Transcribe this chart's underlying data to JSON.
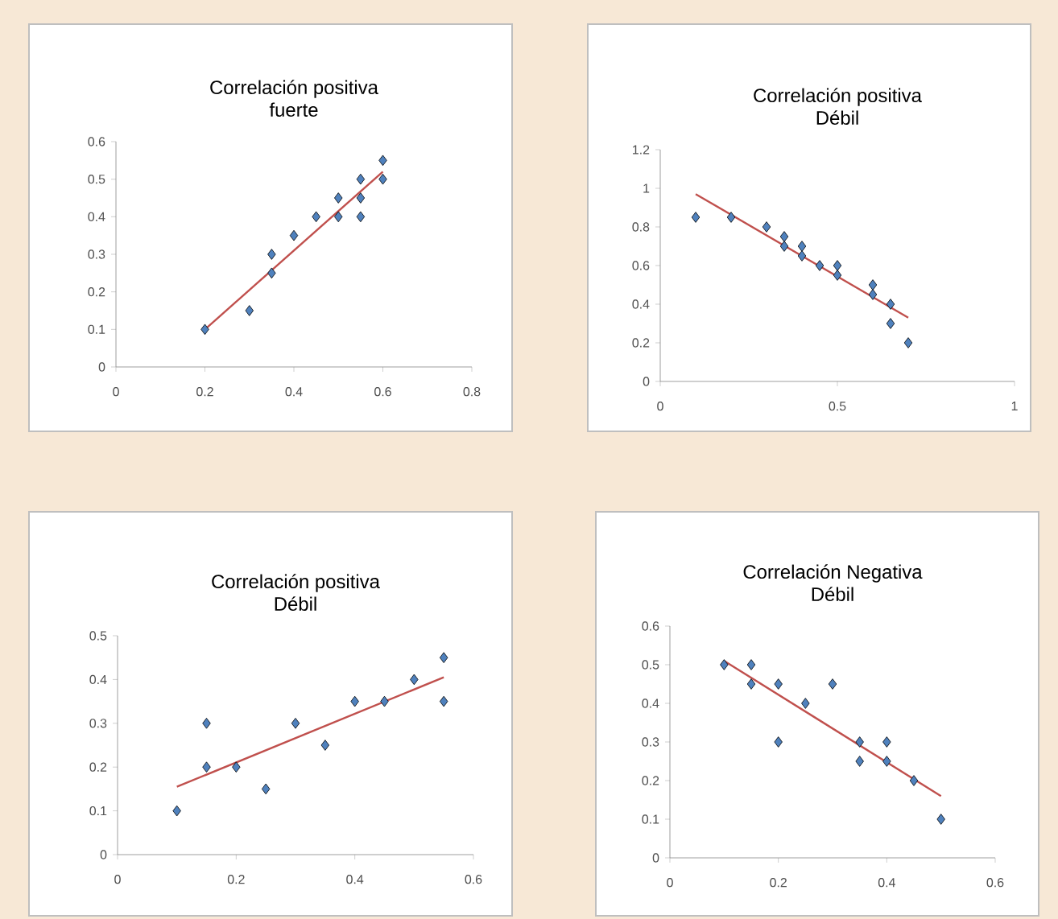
{
  "chart_data": [
    {
      "type": "scatter",
      "title": "Correlación positiva",
      "subtitle": "fuerte",
      "xlim": [
        0,
        0.8
      ],
      "xticks": [
        0,
        0.2,
        0.4,
        0.6,
        0.8
      ],
      "ylim": [
        0,
        0.6
      ],
      "yticks": [
        0,
        0.1,
        0.2,
        0.3,
        0.4,
        0.5,
        0.6
      ],
      "series": [
        {
          "marker": "diamond",
          "color": "#4f81bd",
          "x": [
            0.2,
            0.3,
            0.35,
            0.35,
            0.4,
            0.45,
            0.5,
            0.5,
            0.55,
            0.55,
            0.55,
            0.6,
            0.6
          ],
          "values": [
            0.1,
            0.15,
            0.25,
            0.3,
            0.35,
            0.4,
            0.4,
            0.45,
            0.4,
            0.45,
            0.5,
            0.5,
            0.55
          ]
        },
        {
          "type": "line",
          "marker": "none",
          "color": "#c0504d",
          "x": [
            0.2,
            0.6
          ],
          "values": [
            0.1,
            0.52
          ]
        }
      ]
    },
    {
      "type": "scatter",
      "title": "Correlación positiva",
      "subtitle": "Débil",
      "xlim": [
        0,
        1
      ],
      "xticks": [
        0,
        0.5,
        1
      ],
      "ylim": [
        0,
        1.2
      ],
      "yticks": [
        0,
        0.2,
        0.4,
        0.6,
        0.8,
        1,
        1.2
      ],
      "series": [
        {
          "marker": "diamond",
          "color": "#4f81bd",
          "x": [
            0.1,
            0.2,
            0.3,
            0.35,
            0.35,
            0.4,
            0.4,
            0.45,
            0.5,
            0.5,
            0.6,
            0.6,
            0.65,
            0.65,
            0.7
          ],
          "values": [
            0.85,
            0.85,
            0.8,
            0.75,
            0.7,
            0.7,
            0.65,
            0.6,
            0.6,
            0.55,
            0.5,
            0.45,
            0.4,
            0.3,
            0.2
          ]
        },
        {
          "type": "line",
          "marker": "none",
          "color": "#c0504d",
          "x": [
            0.1,
            0.7
          ],
          "values": [
            0.97,
            0.33
          ]
        }
      ]
    },
    {
      "type": "scatter",
      "title": "Correlación positiva",
      "subtitle": "Débil",
      "xlim": [
        0,
        0.6
      ],
      "xticks": [
        0,
        0.2,
        0.4,
        0.6
      ],
      "ylim": [
        0,
        0.5
      ],
      "yticks": [
        0,
        0.1,
        0.2,
        0.3,
        0.4,
        0.5
      ],
      "series": [
        {
          "marker": "diamond",
          "color": "#4f81bd",
          "x": [
            0.1,
            0.15,
            0.15,
            0.2,
            0.25,
            0.3,
            0.35,
            0.4,
            0.45,
            0.5,
            0.55,
            0.55
          ],
          "values": [
            0.1,
            0.3,
            0.2,
            0.2,
            0.15,
            0.3,
            0.25,
            0.35,
            0.35,
            0.4,
            0.45,
            0.35
          ]
        },
        {
          "type": "line",
          "marker": "none",
          "color": "#c0504d",
          "x": [
            0.1,
            0.55
          ],
          "values": [
            0.155,
            0.405
          ]
        }
      ]
    },
    {
      "type": "scatter",
      "title": "Correlación Negativa",
      "subtitle": "Débil",
      "xlim": [
        0,
        0.6
      ],
      "xticks": [
        0,
        0.2,
        0.4,
        0.6
      ],
      "ylim": [
        0,
        0.6
      ],
      "yticks": [
        0,
        0.1,
        0.2,
        0.3,
        0.4,
        0.5,
        0.6
      ],
      "series": [
        {
          "marker": "diamond",
          "color": "#4f81bd",
          "x": [
            0.1,
            0.15,
            0.15,
            0.2,
            0.2,
            0.25,
            0.3,
            0.35,
            0.35,
            0.4,
            0.4,
            0.45,
            0.5
          ],
          "values": [
            0.5,
            0.5,
            0.45,
            0.45,
            0.3,
            0.4,
            0.45,
            0.3,
            0.25,
            0.3,
            0.25,
            0.2,
            0.1
          ]
        },
        {
          "type": "line",
          "marker": "none",
          "color": "#c0504d",
          "x": [
            0.1,
            0.5
          ],
          "values": [
            0.51,
            0.16
          ]
        }
      ]
    }
  ]
}
